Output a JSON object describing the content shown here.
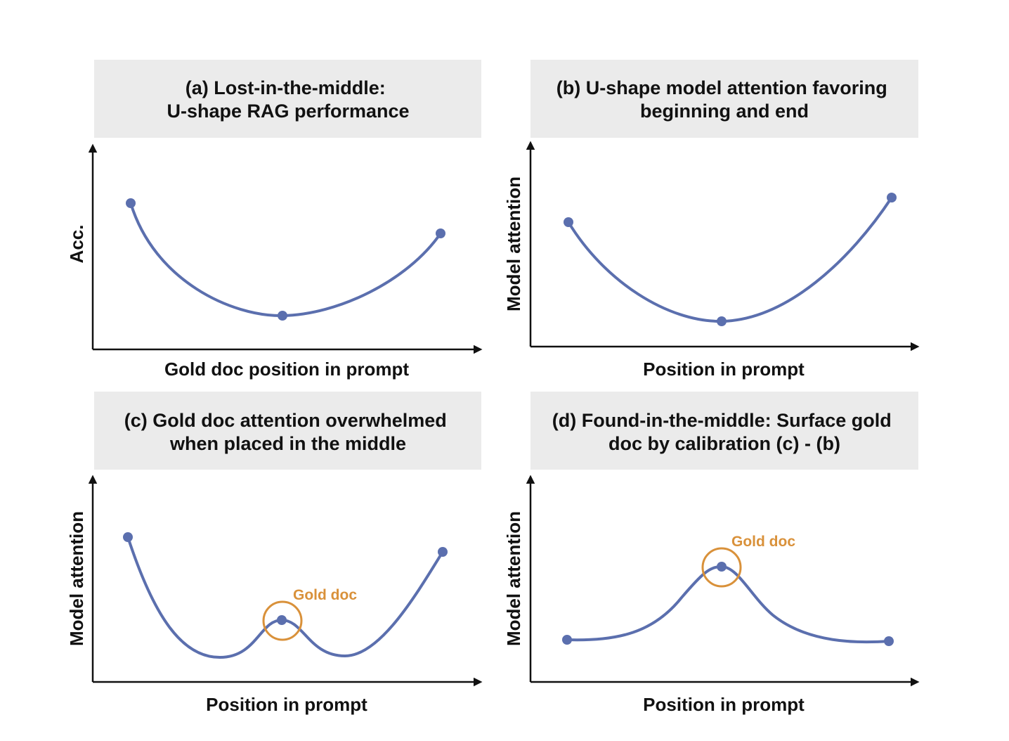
{
  "colors": {
    "curve": "#5B6FAE",
    "highlight": "#D9913A",
    "title_bg": "#EBEBEB"
  },
  "panels": [
    {
      "title_line1": "(a) Lost-in-the-middle:",
      "title_line2": "U-shape RAG performance",
      "xlabel": "Gold doc position in prompt",
      "ylabel": "Acc."
    },
    {
      "title_line1": "(b) U-shape model attention favoring",
      "title_line2": "beginning and end",
      "xlabel": "Position in prompt",
      "ylabel": "Model attention"
    },
    {
      "title_line1": "(c) Gold doc attention overwhelmed",
      "title_line2": "when placed in the middle",
      "xlabel": "Position in prompt",
      "ylabel": "Model attention",
      "annotation": "Gold doc"
    },
    {
      "title_line1": "(d) Found-in-the-middle: Surface gold",
      "title_line2": "doc by calibration (c) - (b)",
      "xlabel": "Position in prompt",
      "ylabel": "Model attention",
      "annotation": "Gold doc"
    }
  ]
}
